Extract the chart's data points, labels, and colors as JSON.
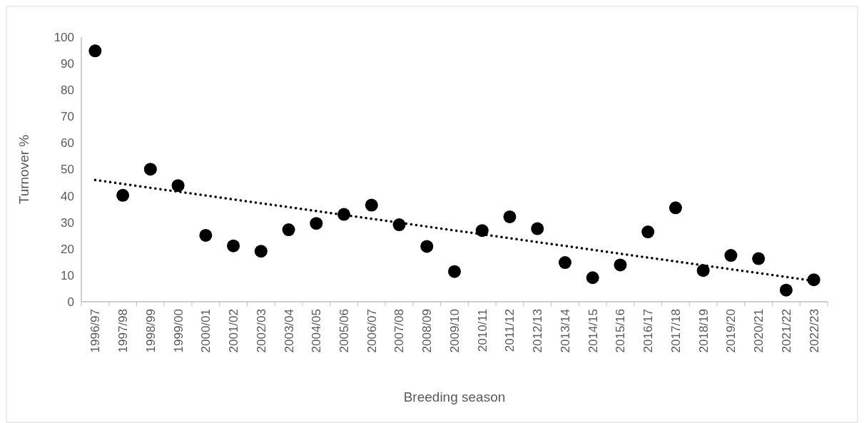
{
  "chart_data": {
    "type": "scatter",
    "xlabel": "Breeding season",
    "ylabel": "Turnover %",
    "categories": [
      "1996/97",
      "1997/98",
      "1998/99",
      "1999/00",
      "2000/01",
      "2001/02",
      "2002/03",
      "2003/04",
      "2004/05",
      "2005/06",
      "2006/07",
      "2007/08",
      "2008/09",
      "2009/10",
      "2010/11",
      "2011/12",
      "2012/13",
      "2013/14",
      "2014/15",
      "2015/16",
      "2016/17",
      "2017/18",
      "2018/19",
      "2019/20",
      "2020/21",
      "2021/22",
      "2022/23"
    ],
    "ylim": [
      0,
      100
    ],
    "yticks": [
      0,
      10,
      20,
      30,
      40,
      50,
      60,
      70,
      80,
      90,
      100
    ],
    "series": [
      {
        "marker": "circle",
        "color": "#000000",
        "values": [
          94.8,
          40.2,
          50.1,
          43.9,
          25.1,
          21.1,
          19.1,
          27.2,
          29.6,
          33.0,
          36.5,
          29.1,
          20.9,
          11.4,
          26.9,
          32.1,
          27.6,
          14.8,
          9.1,
          13.9,
          26.4,
          35.5,
          11.8,
          17.5,
          16.3,
          4.4,
          8.3
        ]
      },
      {
        "type": "line",
        "color": "#000000",
        "line_style": "dotted",
        "x": [
          "1996/97",
          "2022/23"
        ],
        "values": [
          46.0,
          7.9
        ]
      }
    ]
  }
}
